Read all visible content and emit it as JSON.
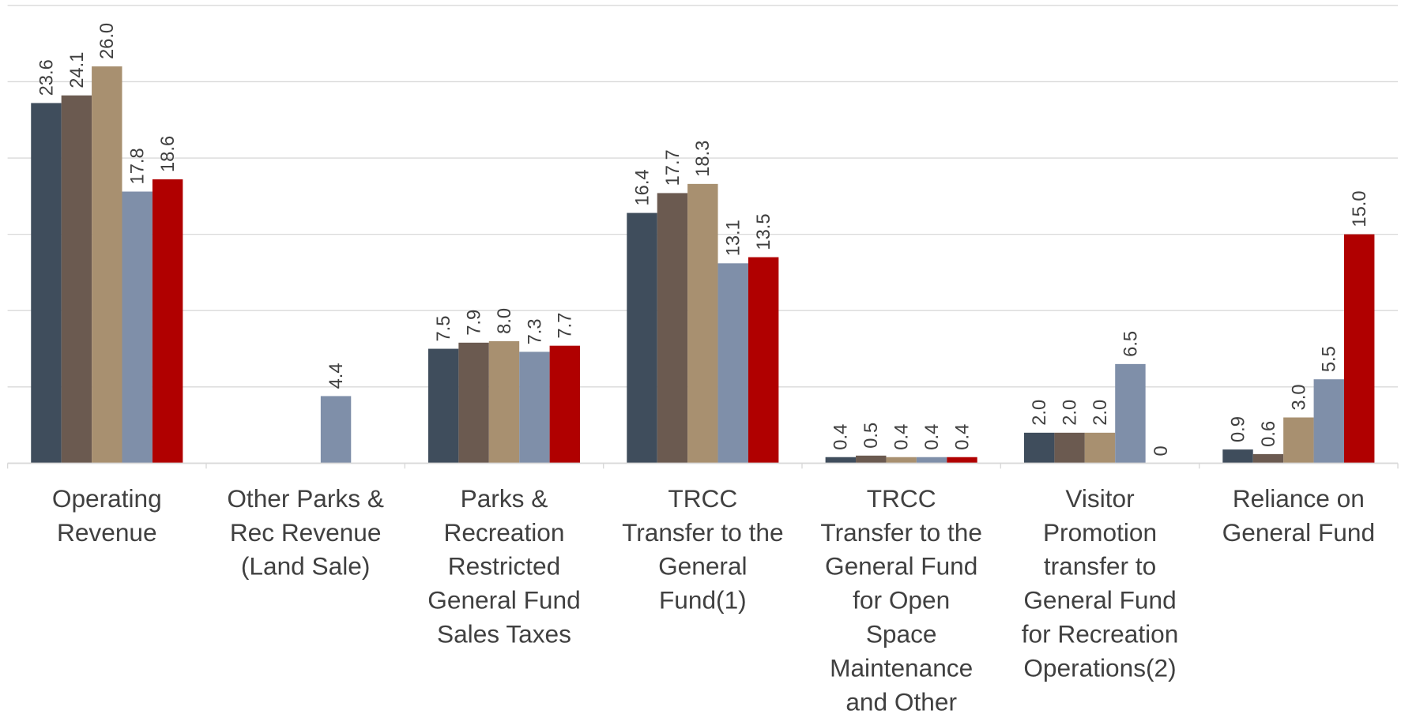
{
  "chart_data": {
    "type": "bar",
    "categories": [
      "Operating\nRevenue",
      "Other Parks &\nRec Revenue\n(Land Sale)",
      "Parks &\nRecreation\nRestricted\nGeneral Fund\nSales Taxes",
      "TRCC\nTransfer to the\nGeneral\nFund(1)",
      "TRCC\nTransfer to the\nGeneral Fund\nfor Open\nSpace\nMaintenance\nand Other",
      "Visitor\nPromotion\ntransfer to\nGeneral Fund\nfor Recreation\nOperations(2)",
      "Reliance on\nGeneral Fund"
    ],
    "series": [
      {
        "color": "#3f4d5c",
        "values": [
          23.6,
          null,
          7.5,
          16.4,
          0.4,
          2.0,
          0.9
        ],
        "value_labels": [
          "23.6",
          null,
          "7.5",
          "16.4",
          "0.4",
          "2.0",
          "0.9"
        ]
      },
      {
        "color": "#6b5a50",
        "values": [
          24.1,
          null,
          7.9,
          17.7,
          0.5,
          2.0,
          0.6
        ],
        "value_labels": [
          "24.1",
          null,
          "7.9",
          "17.7",
          "0.5",
          "2.0",
          "0.6"
        ]
      },
      {
        "color": "#a89070",
        "values": [
          26.0,
          null,
          8.0,
          18.3,
          0.4,
          2.0,
          3.0
        ],
        "value_labels": [
          "26.0",
          null,
          "8.0",
          "18.3",
          "0.4",
          "2.0",
          "3.0"
        ]
      },
      {
        "color": "#7f8fa9",
        "values": [
          17.8,
          4.4,
          7.3,
          13.1,
          0.4,
          6.5,
          5.5
        ],
        "value_labels": [
          "17.8",
          "4.4",
          "7.3",
          "13.1",
          "0.4",
          "6.5",
          "5.5"
        ]
      },
      {
        "color": "#b00000",
        "values": [
          18.6,
          null,
          7.7,
          13.5,
          0.4,
          0,
          15.0
        ],
        "value_labels": [
          "18.6",
          null,
          "7.7",
          "13.5",
          "0.4",
          "0",
          "15.0"
        ]
      }
    ],
    "ylim": [
      0,
      30
    ],
    "yticks": [
      0,
      5,
      10,
      15,
      20,
      25,
      30
    ],
    "grid": true
  }
}
